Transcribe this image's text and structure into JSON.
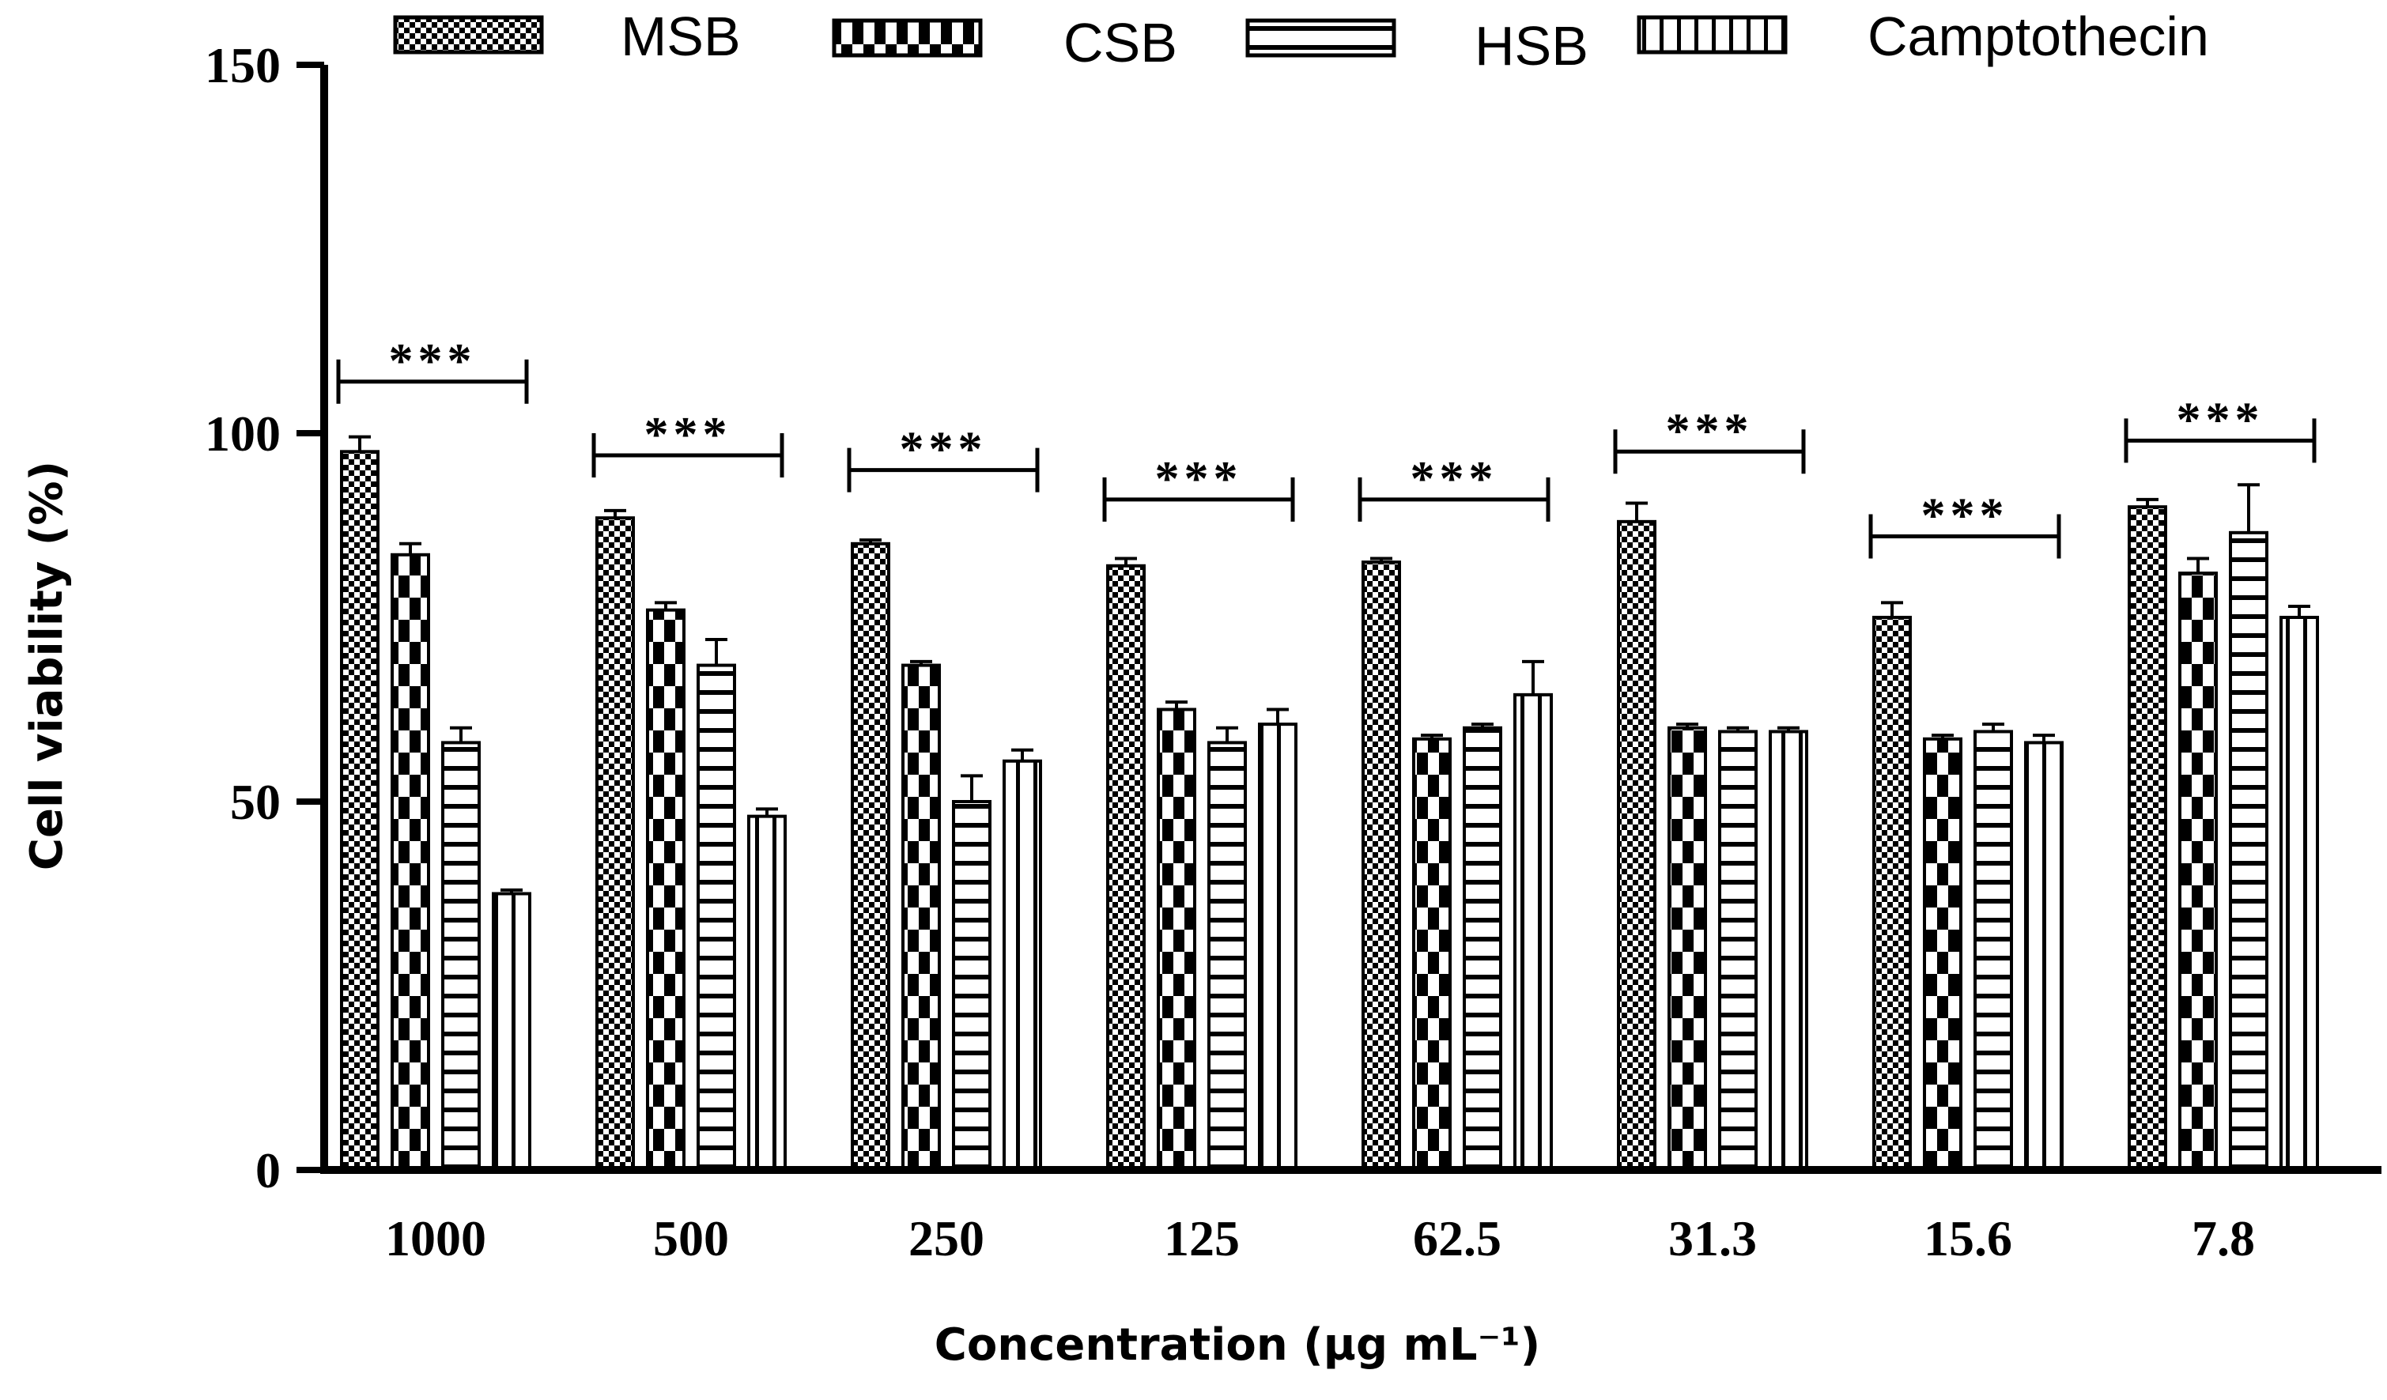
{
  "chart_data": {
    "type": "bar",
    "title": "",
    "xlabel": "Concentration (µg mL⁻¹)",
    "ylabel": "Cell viability (%)",
    "ylim": [
      0,
      150
    ],
    "yticks": [
      0,
      50,
      100,
      150
    ],
    "grid": false,
    "legend_position": "top",
    "categories": [
      "1000",
      "500",
      "250",
      "125",
      "62.5",
      "31.3",
      "15.6",
      "7.8"
    ],
    "series": [
      {
        "name": "MSB",
        "pattern": "checker-fine",
        "values": [
          97.5,
          88.5,
          85,
          82,
          82.5,
          88,
          75,
          90
        ],
        "errors": [
          2,
          1,
          0.5,
          1,
          0.5,
          2.5,
          2,
          1
        ]
      },
      {
        "name": "CSB",
        "pattern": "checker-coarse",
        "values": [
          83.5,
          76,
          68.5,
          62.5,
          58.5,
          60,
          58.5,
          81
        ],
        "errors": [
          1.5,
          1,
          0.5,
          1,
          0.5,
          0.5,
          0.5,
          2
        ]
      },
      {
        "name": "HSB",
        "pattern": "horizontal-stripes",
        "values": [
          58,
          68.5,
          50,
          58,
          60,
          59.5,
          59.5,
          86.5
        ],
        "errors": [
          2,
          3.5,
          3.5,
          2,
          0.5,
          0.5,
          1,
          6.5
        ]
      },
      {
        "name": "Camptothecin",
        "pattern": "vertical-stripes",
        "values": [
          37.5,
          48,
          55.5,
          60.5,
          64.5,
          59.5,
          58,
          75
        ],
        "errors": [
          0.5,
          1,
          1.5,
          2,
          4.5,
          0.5,
          1,
          1.5
        ]
      }
    ],
    "significance": [
      {
        "category": "1000",
        "label": "***",
        "y": 107
      },
      {
        "category": "500",
        "label": "***",
        "y": 97
      },
      {
        "category": "250",
        "label": "***",
        "y": 95
      },
      {
        "category": "125",
        "label": "***",
        "y": 91
      },
      {
        "category": "62.5",
        "label": "***",
        "y": 91
      },
      {
        "category": "31.3",
        "label": "***",
        "y": 97.5
      },
      {
        "category": "15.6",
        "label": "***",
        "y": 86
      },
      {
        "category": "7.8",
        "label": "***",
        "y": 99
      }
    ]
  }
}
